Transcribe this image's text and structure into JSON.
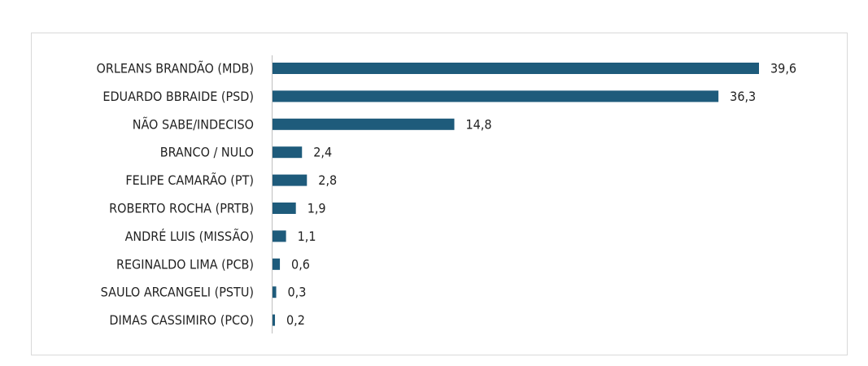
{
  "chart_data": {
    "type": "bar",
    "orientation": "horizontal",
    "categories": [
      "ORLEANS BRANDÃO (MDB)",
      "EDUARDO BBRAIDE (PSD)",
      "NÃO SABE/INDECISO",
      "BRANCO / NULO",
      "FELIPE CAMARÃO (PT)",
      "ROBERTO ROCHA (PRTB)",
      "ANDRÉ LUIS (MISSÃO)",
      "REGINALDO LIMA (PCB)",
      "SAULO ARCANGELI (PSTU)",
      "DIMAS CASSIMIRO (PCO)"
    ],
    "values": [
      39.6,
      36.3,
      14.8,
      2.4,
      2.8,
      1.9,
      1.1,
      0.6,
      0.3,
      0.2
    ],
    "value_labels": [
      "39,6",
      "36,3",
      "14,8",
      "2,4",
      "2,8",
      "1,9",
      "1,1",
      "0,6",
      "0,3",
      "0,2"
    ],
    "color": "#1e5b7b"
  }
}
